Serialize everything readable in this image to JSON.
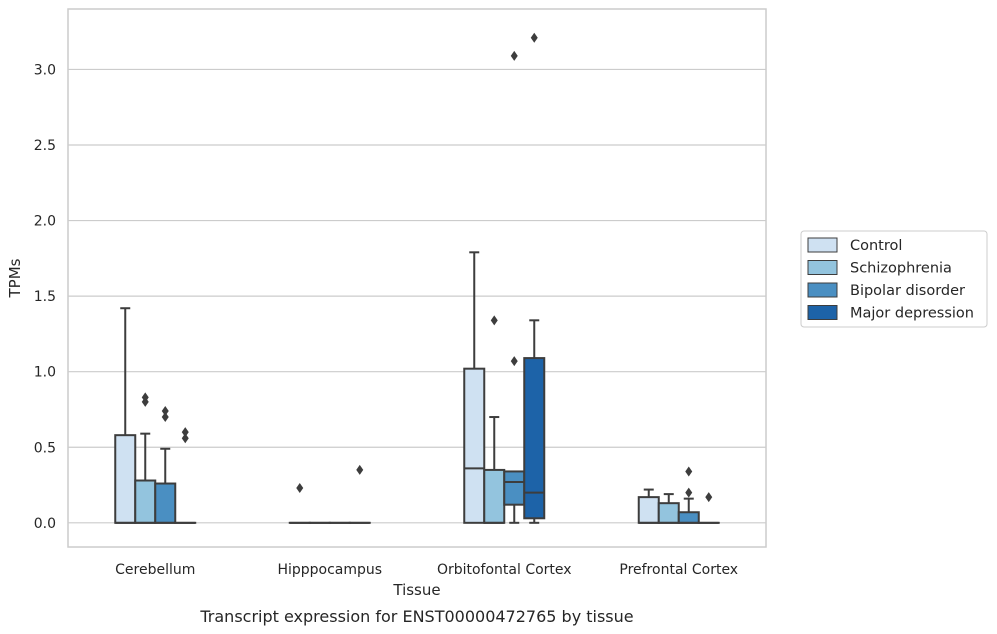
{
  "chart_data": {
    "type": "box",
    "xlabel": "Tissue",
    "ylabel": "TPMs",
    "caption": "Transcript expression for ENST00000472765 by tissue",
    "categories": [
      "Cerebellum",
      "Hipppocampus",
      "Orbitofontal Cortex",
      "Prefrontal Cortex"
    ],
    "ylim": [
      -0.16,
      3.4
    ],
    "yticks": [
      0.0,
      0.5,
      1.0,
      1.5,
      2.0,
      2.5,
      3.0
    ],
    "ytick_labels": [
      "0.0",
      "0.5",
      "1.0",
      "1.5",
      "2.0",
      "2.5",
      "3.0"
    ],
    "grid": "horizontal",
    "legend_position": "right",
    "series": [
      {
        "name": "Control",
        "color": "#cfe1f2",
        "boxes": [
          {
            "category": "Cerebellum",
            "q1": 0.0,
            "median": 0.0,
            "q3": 0.58,
            "whislo": 0.0,
            "whishi": 1.42,
            "fliers": []
          },
          {
            "category": "Hipppocampus",
            "q1": 0.0,
            "median": 0.0,
            "q3": 0.0,
            "whislo": 0.0,
            "whishi": 0.0,
            "fliers": [
              0.23
            ]
          },
          {
            "category": "Orbitofontal Cortex",
            "q1": 0.0,
            "median": 0.36,
            "q3": 1.02,
            "whislo": 0.0,
            "whishi": 1.79,
            "fliers": []
          },
          {
            "category": "Prefrontal Cortex",
            "q1": 0.0,
            "median": 0.0,
            "q3": 0.17,
            "whislo": 0.0,
            "whishi": 0.22,
            "fliers": []
          }
        ]
      },
      {
        "name": "Schizophrenia",
        "color": "#93c4de",
        "boxes": [
          {
            "category": "Cerebellum",
            "q1": 0.0,
            "median": 0.0,
            "q3": 0.28,
            "whislo": 0.0,
            "whishi": 0.59,
            "fliers": [
              0.8,
              0.83
            ]
          },
          {
            "category": "Hipppocampus",
            "q1": 0.0,
            "median": 0.0,
            "q3": 0.0,
            "whislo": 0.0,
            "whishi": 0.0,
            "fliers": []
          },
          {
            "category": "Orbitofontal Cortex",
            "q1": 0.0,
            "median": 0.0,
            "q3": 0.35,
            "whislo": 0.0,
            "whishi": 0.7,
            "fliers": [
              1.34
            ]
          },
          {
            "category": "Prefrontal Cortex",
            "q1": 0.0,
            "median": 0.0,
            "q3": 0.13,
            "whislo": 0.0,
            "whishi": 0.19,
            "fliers": []
          }
        ]
      },
      {
        "name": "Bipolar disorder",
        "color": "#4a8fc2",
        "boxes": [
          {
            "category": "Cerebellum",
            "q1": 0.0,
            "median": 0.0,
            "q3": 0.26,
            "whislo": 0.0,
            "whishi": 0.49,
            "fliers": [
              0.7,
              0.74
            ]
          },
          {
            "category": "Hipppocampus",
            "q1": 0.0,
            "median": 0.0,
            "q3": 0.0,
            "whislo": 0.0,
            "whishi": 0.0,
            "fliers": []
          },
          {
            "category": "Orbitofontal Cortex",
            "q1": 0.12,
            "median": 0.27,
            "q3": 0.34,
            "whislo": 0.0,
            "whishi": 0.34,
            "fliers": [
              1.07,
              3.09
            ]
          },
          {
            "category": "Prefrontal Cortex",
            "q1": 0.0,
            "median": 0.0,
            "q3": 0.07,
            "whislo": 0.0,
            "whishi": 0.16,
            "fliers": [
              0.2,
              0.34
            ]
          }
        ]
      },
      {
        "name": "Major depression",
        "color": "#1d63a8",
        "boxes": [
          {
            "category": "Cerebellum",
            "q1": 0.0,
            "median": 0.0,
            "q3": 0.0,
            "whislo": 0.0,
            "whishi": 0.0,
            "fliers": [
              0.56,
              0.6
            ]
          },
          {
            "category": "Hipppocampus",
            "q1": 0.0,
            "median": 0.0,
            "q3": 0.0,
            "whislo": 0.0,
            "whishi": 0.0,
            "fliers": [
              0.35
            ]
          },
          {
            "category": "Orbitofontal Cortex",
            "q1": 0.03,
            "median": 0.2,
            "q3": 1.09,
            "whislo": 0.0,
            "whishi": 1.34,
            "fliers": [
              3.21
            ]
          },
          {
            "category": "Prefrontal Cortex",
            "q1": 0.0,
            "median": 0.0,
            "q3": 0.0,
            "whislo": 0.0,
            "whishi": 0.0,
            "fliers": [
              0.17
            ]
          }
        ]
      }
    ],
    "colors": {
      "grid": "#cccccc",
      "frame": "#cccccc",
      "line": "#3d3d3d",
      "text": "#262626"
    }
  }
}
